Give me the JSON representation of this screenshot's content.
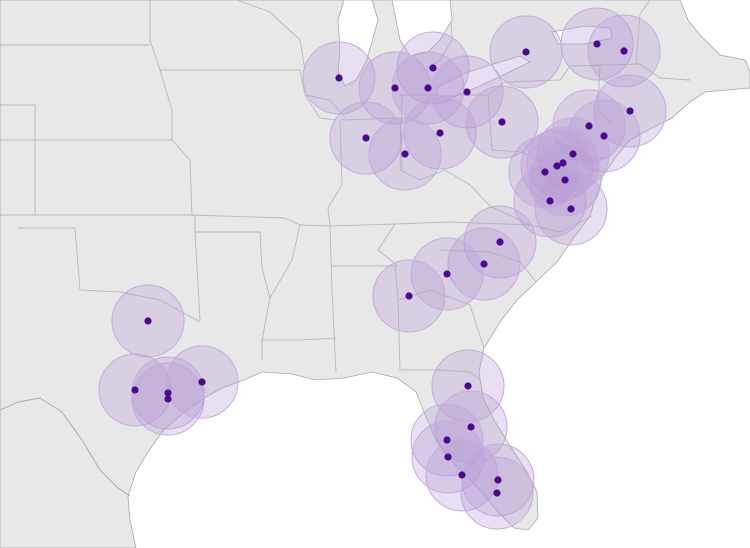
{
  "map": {
    "style": {
      "land": "#e8e8e8",
      "water": "#ffffff",
      "border": "#b9b9b9",
      "coast": "#a8a8a8",
      "circle_fill": "#b79ad6",
      "circle_stroke": "#c4acdf",
      "dot": "#4b0a8c"
    },
    "locations": [
      {
        "id": "chicago"
      },
      {
        "id": "grand-rapids"
      },
      {
        "id": "detroit-north"
      },
      {
        "id": "kalamazoo"
      },
      {
        "id": "ann-arbor"
      },
      {
        "id": "toledo"
      },
      {
        "id": "indianapolis"
      },
      {
        "id": "dayton"
      },
      {
        "id": "cincinnati"
      },
      {
        "id": "cleveland"
      },
      {
        "id": "buffalo"
      },
      {
        "id": "albany-west"
      },
      {
        "id": "albany"
      },
      {
        "id": "hartford"
      },
      {
        "id": "harrisburg"
      },
      {
        "id": "new-jersey"
      },
      {
        "id": "baltimore"
      },
      {
        "id": "washington"
      },
      {
        "id": "dc-metro"
      },
      {
        "id": "richmond"
      },
      {
        "id": "norfolk"
      },
      {
        "id": "greensboro"
      },
      {
        "id": "charlotte"
      },
      {
        "id": "greenville"
      },
      {
        "id": "atlanta"
      },
      {
        "id": "dallas-north"
      },
      {
        "id": "austin"
      },
      {
        "id": "houston-a"
      },
      {
        "id": "houston-b"
      },
      {
        "id": "beaumont"
      },
      {
        "id": "jacksonville"
      },
      {
        "id": "orlando"
      },
      {
        "id": "tampa"
      },
      {
        "id": "lakeland"
      },
      {
        "id": "sarasota"
      },
      {
        "id": "fort-myers"
      },
      {
        "id": "west-palm"
      },
      {
        "id": "miami"
      }
    ]
  }
}
